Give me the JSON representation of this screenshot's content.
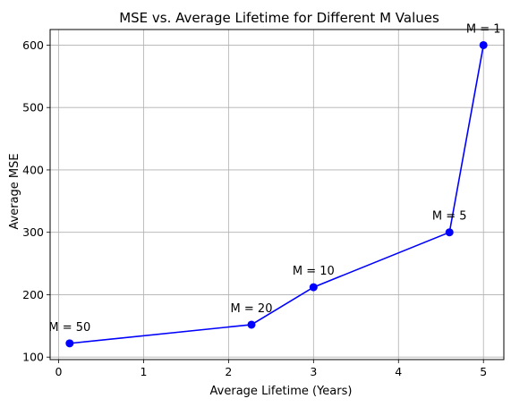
{
  "chart_data": {
    "type": "line",
    "title": "MSE vs. Average Lifetime for Different M Values",
    "xlabel": "Average Lifetime (Years)",
    "ylabel": "Average MSE",
    "xlim": [
      -0.1,
      5.24
    ],
    "ylim": [
      96,
      625
    ],
    "xticks": [
      0,
      1,
      2,
      3,
      4,
      5
    ],
    "yticks": [
      100,
      200,
      300,
      400,
      500,
      600
    ],
    "grid": true,
    "series": [
      {
        "color": "#0000ff",
        "marker": "circle",
        "points": [
          {
            "x": 0.13,
            "y": 122,
            "label": "M = 50"
          },
          {
            "x": 2.27,
            "y": 152,
            "label": "M = 20"
          },
          {
            "x": 3.0,
            "y": 212,
            "label": "M = 10"
          },
          {
            "x": 4.6,
            "y": 300,
            "label": "M = 5"
          },
          {
            "x": 5.0,
            "y": 600,
            "label": "M = 1"
          }
        ]
      }
    ]
  }
}
